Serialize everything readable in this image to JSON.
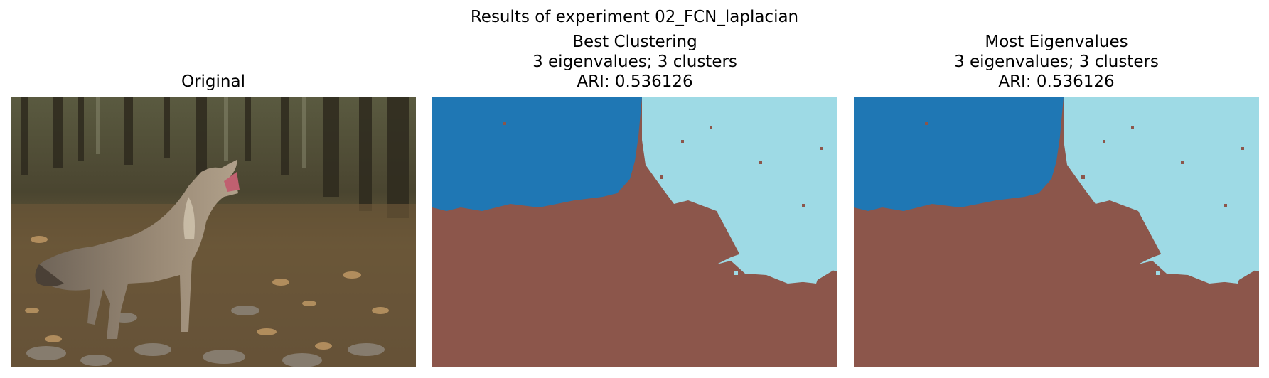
{
  "figure": {
    "suptitle": "Results of experiment 02_FCN_laplacian"
  },
  "panels": [
    {
      "id": "original",
      "title_lines": [
        "Original"
      ],
      "image": "photo of a coyote howling on rocky ground with fallen leaves and forest background"
    },
    {
      "id": "best-clustering",
      "title_lines": [
        "Best Clustering",
        "3 eigenvalues; 3 clusters",
        "ARI: 0.536126"
      ]
    },
    {
      "id": "most-eigenvalues",
      "title_lines": [
        "Most Eigenvalues",
        "3 eigenvalues; 3 clusters",
        "ARI: 0.536126"
      ]
    }
  ],
  "cluster_colors": {
    "cluster_0": "#1f77b4",
    "cluster_1": "#9edae5",
    "cluster_2": "#8c564b"
  }
}
